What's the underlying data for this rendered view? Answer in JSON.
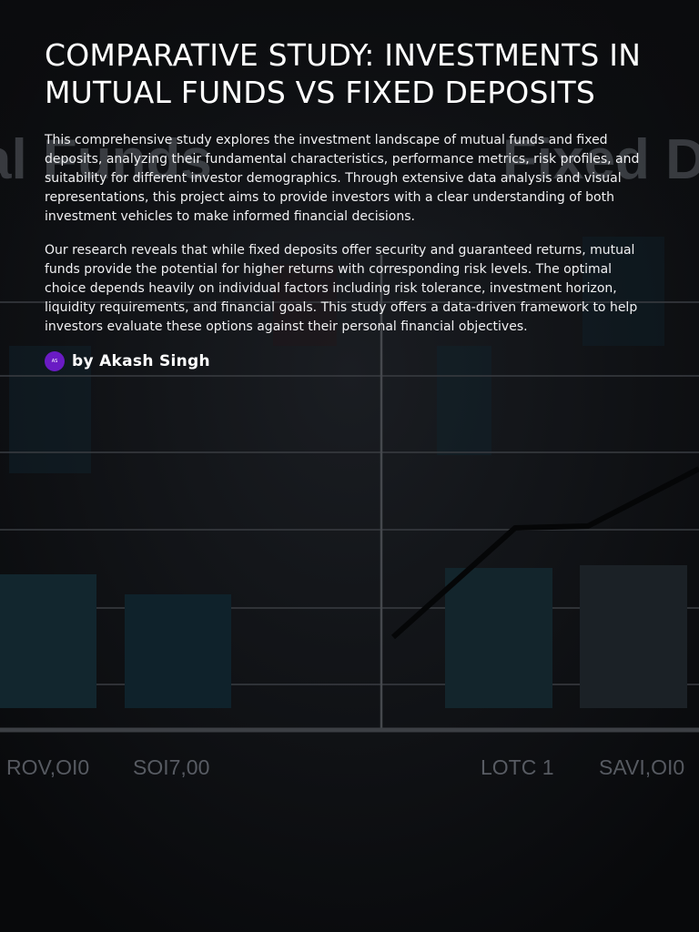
{
  "document": {
    "title": "COMPARATIVE STUDY: INVESTMENTS IN MUTUAL FUNDS VS FIXED DEPOSITS",
    "paragraphs": [
      "This comprehensive study explores the investment landscape of mutual funds and fixed deposits, analyzing their fundamental characteristics, performance metrics, risk profiles, and suitability for different investor demographics. Through extensive data analysis and visual representations, this project aims to provide investors with a clear understanding of both investment vehicles to make informed financial decisions.",
      "Our research reveals that while fixed deposits offer security and guaranteed returns, mutual funds provide the potential for higher returns with corresponding risk levels. The optimal choice depends heavily on individual factors including risk tolerance, investment horizon, liquidity requirements, and financial goals. This study offers a data-driven framework to help investors evaluate these options against their personal financial objectives."
    ],
    "byline": "by Akash Singh",
    "avatar_text": "AS"
  },
  "background": {
    "left_word": "al Funds",
    "right_word": "Fixed D",
    "tick_labels": [
      "ROV,OI0",
      "SOI7,00",
      "LOTC 1",
      "SAVI,OI0"
    ]
  },
  "colors": {
    "page_background": "#0b0c0e",
    "avatar": "#6a1bc4",
    "text": "#ffffff"
  },
  "icons": {
    "avatar": "avatar-icon"
  }
}
